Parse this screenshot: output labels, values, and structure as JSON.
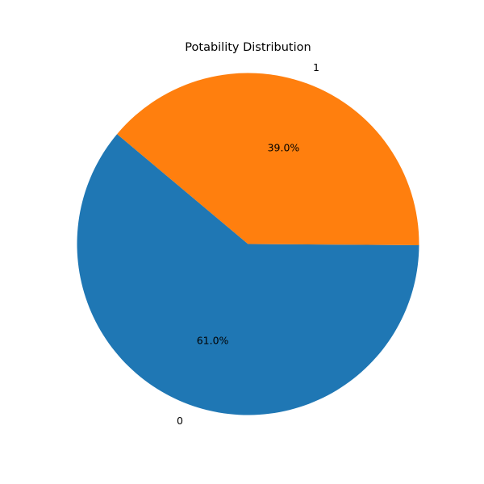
{
  "chart_data": {
    "type": "pie",
    "title": "Potability Distribution",
    "categories": [
      "0",
      "1"
    ],
    "values": [
      61.0,
      39.0
    ],
    "percent_labels": [
      "61.0%",
      "39.0%"
    ],
    "colors": [
      "#1f77b4",
      "#ff7f0e"
    ],
    "start_angle_deg": 140,
    "direction": "counterclockwise",
    "legend": "none"
  }
}
